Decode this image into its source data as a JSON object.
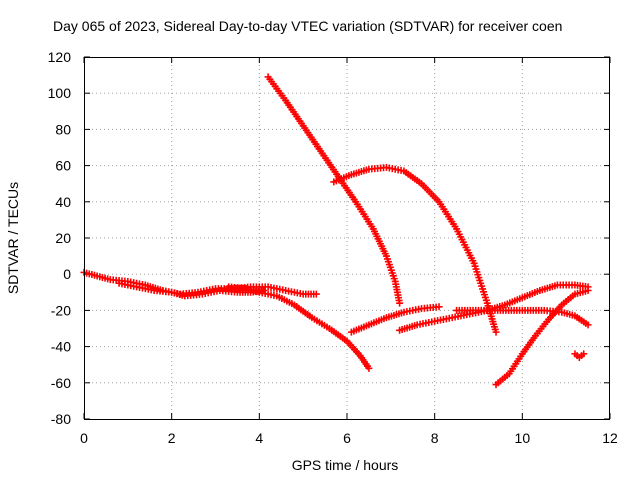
{
  "chart_data": {
    "type": "scatter",
    "title": "Day 065 of 2023, Sidereal Day-to-day VTEC variation (SDTVAR) for receiver coen",
    "xlabel": "GPS time / hours",
    "ylabel": "SDTVAR / TECUs",
    "xlim": [
      0,
      12
    ],
    "ylim": [
      -80,
      120
    ],
    "xticks": [
      "0",
      "2",
      "4",
      "6",
      "8",
      "10",
      "12"
    ],
    "yticks": [
      "-80",
      "-60",
      "-40",
      "-20",
      "0",
      "20",
      "40",
      "60",
      "80",
      "100",
      "120"
    ],
    "grid": true,
    "marker": "+",
    "color": "#ff0000",
    "series": [
      {
        "points": [
          [
            0,
            1
          ],
          [
            0.3,
            -1
          ],
          [
            0.6,
            -3
          ],
          [
            1.0,
            -4
          ],
          [
            1.4,
            -6
          ],
          [
            1.8,
            -9
          ],
          [
            2.2,
            -11
          ],
          [
            2.6,
            -10
          ],
          [
            3.0,
            -8
          ],
          [
            3.4,
            -8
          ],
          [
            3.8,
            -7
          ],
          [
            4.2,
            -7
          ],
          [
            4.6,
            -9
          ],
          [
            5.0,
            -11
          ],
          [
            5.3,
            -11
          ]
        ]
      },
      {
        "points": [
          [
            0.8,
            -5
          ],
          [
            1.2,
            -7
          ],
          [
            1.6,
            -9
          ],
          [
            2.0,
            -10
          ],
          [
            2.3,
            -12
          ],
          [
            2.7,
            -11
          ],
          [
            3.1,
            -9
          ],
          [
            3.5,
            -10
          ],
          [
            3.8,
            -10
          ],
          [
            4.1,
            -9
          ]
        ]
      },
      {
        "points": [
          [
            3.3,
            -7
          ],
          [
            3.7,
            -8
          ],
          [
            4.0,
            -10
          ],
          [
            4.4,
            -12
          ],
          [
            4.8,
            -17
          ],
          [
            5.2,
            -24
          ],
          [
            5.6,
            -30
          ],
          [
            6.0,
            -37
          ],
          [
            6.3,
            -45
          ],
          [
            6.5,
            -52
          ]
        ]
      },
      {
        "points": [
          [
            4.2,
            109
          ],
          [
            4.6,
            96
          ],
          [
            5.0,
            82
          ],
          [
            5.4,
            68
          ],
          [
            5.8,
            54
          ],
          [
            6.2,
            40
          ],
          [
            6.6,
            25
          ],
          [
            6.9,
            10
          ],
          [
            7.1,
            -4
          ],
          [
            7.2,
            -16
          ]
        ]
      },
      {
        "points": [
          [
            5.7,
            51
          ],
          [
            6.1,
            55
          ],
          [
            6.5,
            58
          ],
          [
            6.9,
            59
          ],
          [
            7.3,
            57
          ],
          [
            7.7,
            50
          ],
          [
            8.1,
            40
          ],
          [
            8.5,
            25
          ],
          [
            8.9,
            6
          ],
          [
            9.2,
            -16
          ],
          [
            9.4,
            -32
          ]
        ]
      },
      {
        "points": [
          [
            6.1,
            -32
          ],
          [
            6.5,
            -28
          ],
          [
            6.9,
            -24
          ],
          [
            7.3,
            -21
          ],
          [
            7.7,
            -19
          ],
          [
            8.1,
            -18
          ]
        ]
      },
      {
        "points": [
          [
            7.2,
            -31
          ],
          [
            7.6,
            -28
          ],
          [
            8.0,
            -26
          ],
          [
            8.4,
            -24
          ],
          [
            8.8,
            -22
          ],
          [
            9.2,
            -20
          ],
          [
            9.6,
            -17
          ],
          [
            10.0,
            -13
          ],
          [
            10.4,
            -9
          ],
          [
            10.8,
            -6
          ],
          [
            11.2,
            -6
          ],
          [
            11.5,
            -7
          ]
        ]
      },
      {
        "points": [
          [
            8.5,
            -20
          ],
          [
            9.0,
            -20
          ],
          [
            9.5,
            -20
          ],
          [
            10.0,
            -20
          ],
          [
            10.5,
            -20
          ],
          [
            10.9,
            -21
          ],
          [
            11.2,
            -23
          ],
          [
            11.5,
            -28
          ]
        ]
      },
      {
        "points": [
          [
            9.4,
            -61
          ],
          [
            9.7,
            -55
          ],
          [
            10.0,
            -44
          ],
          [
            10.3,
            -34
          ],
          [
            10.6,
            -25
          ],
          [
            10.9,
            -17
          ],
          [
            11.2,
            -11
          ],
          [
            11.5,
            -9
          ]
        ]
      },
      {
        "points": [
          [
            11.2,
            -44
          ],
          [
            11.3,
            -46
          ],
          [
            11.4,
            -44
          ]
        ]
      }
    ]
  }
}
